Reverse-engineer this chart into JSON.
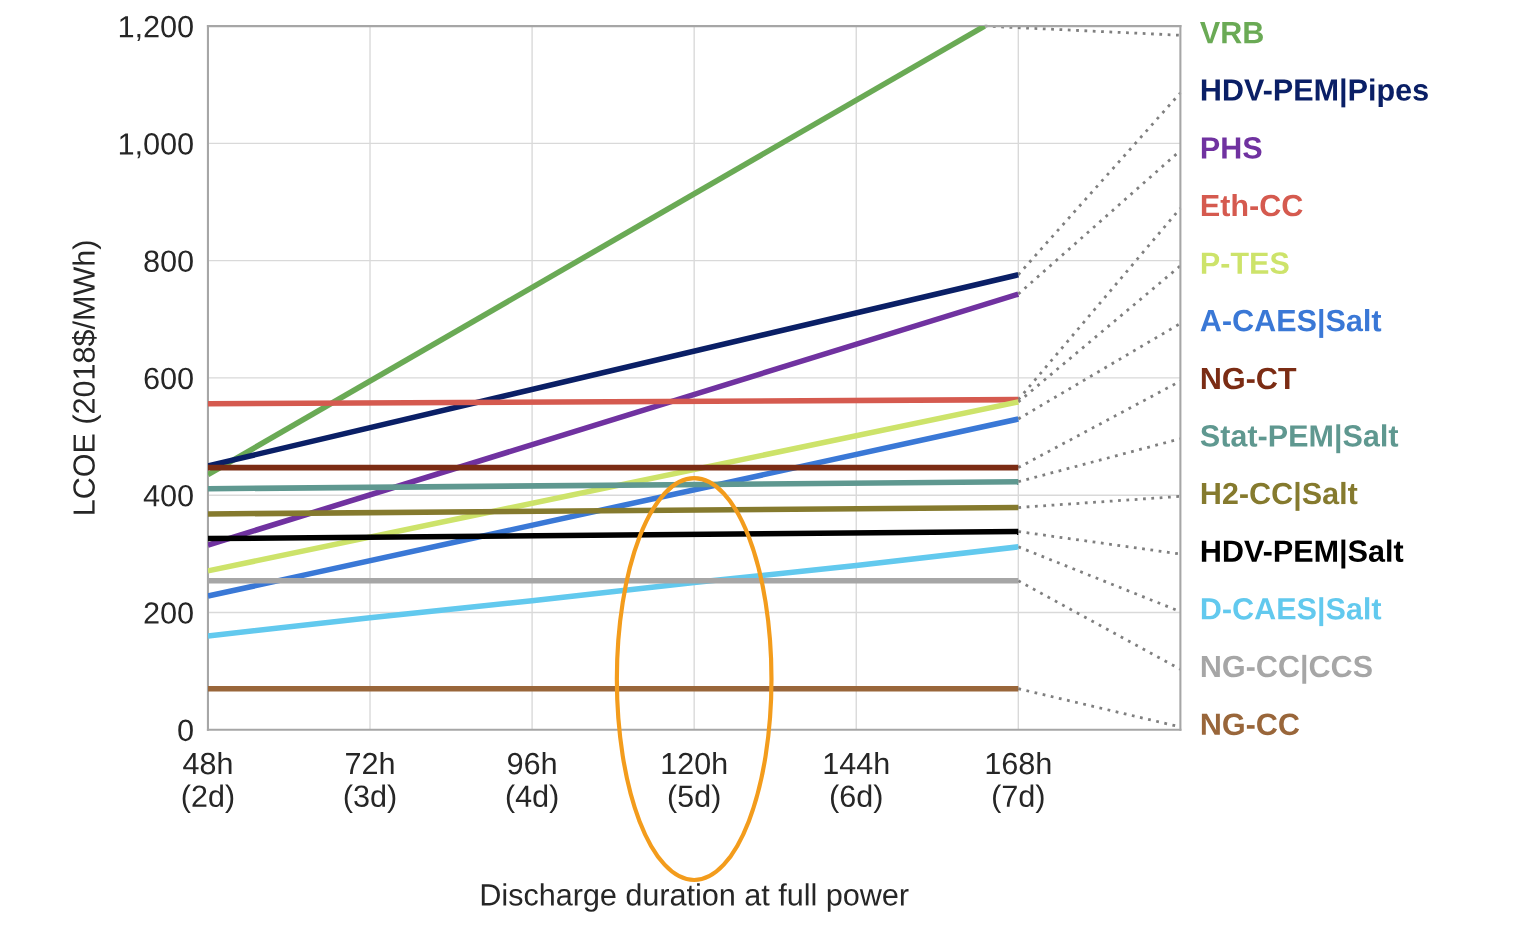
{
  "chart_data": {
    "type": "line",
    "xlabel": "Discharge duration at full power",
    "ylabel": "LCOE (2018$/MWh)",
    "xlim": [
      48,
      192
    ],
    "ylim": [
      0,
      1200
    ],
    "xticks": [
      {
        "value": 48,
        "label": "48h"
      },
      {
        "value": 72,
        "label": "72h"
      },
      {
        "value": 96,
        "label": "96h"
      },
      {
        "value": 120,
        "label": "120h"
      },
      {
        "value": 144,
        "label": "144h"
      },
      {
        "value": 168,
        "label": "168h"
      }
    ],
    "annotations": [
      "(2d)",
      "(3d)",
      "(4d)",
      "(5d)",
      "(6d)",
      "(7d)"
    ],
    "yticks": [
      0,
      {
        "value": 200,
        "label": "200"
      },
      {
        "value": 400,
        "label": "400"
      },
      {
        "value": 600,
        "label": "600"
      },
      {
        "value": 800,
        "label": "800"
      },
      {
        "value": 1000,
        "label": "1,000"
      },
      {
        "value": 1200,
        "label": "1,200"
      }
    ],
    "grid": true,
    "legend": false,
    "marker": "none",
    "line_style": "solid",
    "series": [
      {
        "name": "VRB",
        "color": "#6aaa55",
        "x": [
          48,
          163
        ],
        "values": [
          435,
          1200
        ]
      },
      {
        "name": "HDV-PEM|Pipes",
        "color": "#0a1f66",
        "x": [
          48,
          168
        ],
        "values": [
          450,
          776
        ]
      },
      {
        "name": "PHS",
        "color": "#7032a0",
        "x": [
          48,
          168
        ],
        "values": [
          315,
          743
        ]
      },
      {
        "name": "Eth-CC",
        "color": "#d55a4f",
        "x": [
          48,
          168
        ],
        "values": [
          556,
          563
        ]
      },
      {
        "name": "P-TES",
        "color": "#cde36a",
        "x": [
          48,
          168
        ],
        "values": [
          271,
          559
        ]
      },
      {
        "name": "A-CAES|Salt",
        "color": "#3a78d6",
        "x": [
          48,
          168
        ],
        "values": [
          228,
          530
        ]
      },
      {
        "name": "NG-CT",
        "color": "#7b2c14",
        "x": [
          48,
          168
        ],
        "values": [
          447,
          447
        ]
      },
      {
        "name": "Stat-PEM|Salt",
        "color": "#5f9890",
        "x": [
          48,
          168
        ],
        "values": [
          411,
          423
        ]
      },
      {
        "name": "H2-CC|Salt",
        "color": "#857a2e",
        "x": [
          48,
          168
        ],
        "values": [
          368,
          379
        ]
      },
      {
        "name": "HDV-PEM|Salt",
        "color": "#000000",
        "x": [
          48,
          168
        ],
        "values": [
          326,
          338
        ]
      },
      {
        "name": "D-CAES|Salt",
        "color": "#62c9ee",
        "x": [
          48,
          72,
          96,
          120,
          144,
          168
        ],
        "values": [
          160,
          191,
          220,
          251,
          280,
          312
        ]
      },
      {
        "name": "NG-CC|CCS",
        "color": "#a6a6a6",
        "x": [
          48,
          168
        ],
        "values": [
          254,
          254
        ]
      },
      {
        "name": "NG-CC",
        "color": "#99663a",
        "x": [
          48,
          168
        ],
        "values": [
          70,
          70
        ]
      }
    ]
  }
}
